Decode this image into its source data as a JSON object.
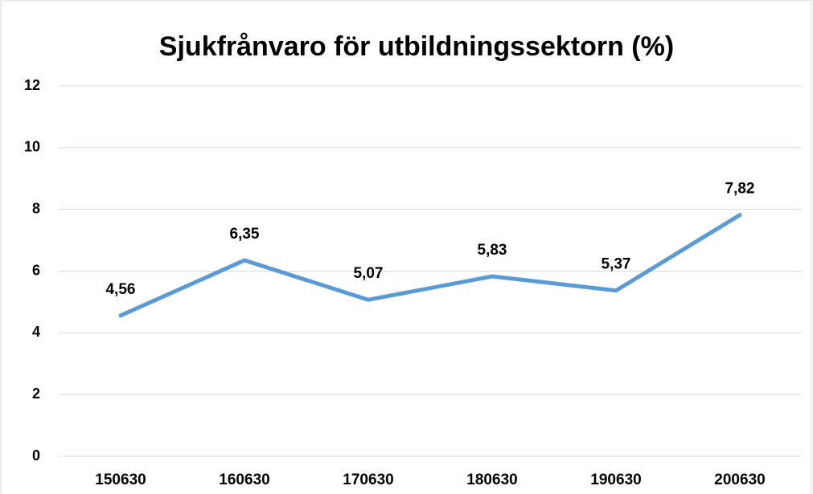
{
  "chart_data": {
    "type": "line",
    "title": "Sjukfrånvaro för utbildningssektorn (%)",
    "categories": [
      "150630",
      "160630",
      "170630",
      "180630",
      "190630",
      "200630"
    ],
    "series": [
      {
        "name": "Sjukfrånvaro",
        "color": "#5b9bd5",
        "values": [
          4.56,
          6.35,
          5.07,
          5.83,
          5.37,
          7.82
        ],
        "value_labels": [
          "4,56",
          "6,35",
          "5,07",
          "5,83",
          "5,37",
          "7,82"
        ]
      }
    ],
    "ylim": [
      0,
      12
    ],
    "yticks": [
      0,
      2,
      4,
      6,
      8,
      10,
      12
    ],
    "grid": true
  }
}
